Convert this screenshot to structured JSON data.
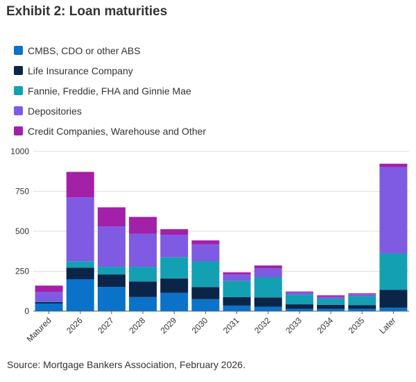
{
  "title": "Exhibit 2: Loan maturities",
  "source": "Source: Mortgage Bankers Association, February 2026.",
  "colors": {
    "cmbs": "#0a72c9",
    "life": "#0b2549",
    "gse": "#13a0b3",
    "depositories": "#7e5be2",
    "credit": "#a320a8",
    "axis": "#555555",
    "grid": "#dddddd"
  },
  "chart_data": {
    "type": "bar",
    "stacked": true,
    "categories": [
      "Matured",
      "2026",
      "2027",
      "2028",
      "2029",
      "2030",
      "2031",
      "2032",
      "2033",
      "2034",
      "2035",
      "Later"
    ],
    "series": [
      {
        "name": "CMBS, CDO or other ABS",
        "color": "#0a72c9",
        "values": [
          48,
          200,
          152,
          88,
          115,
          75,
          35,
          28,
          15,
          15,
          15,
          22
        ]
      },
      {
        "name": "Life Insurance Company",
        "color": "#0b2549",
        "values": [
          10,
          72,
          78,
          98,
          90,
          76,
          52,
          58,
          28,
          25,
          23,
          112
        ]
      },
      {
        "name": "Fannie, Freddie, FHA and Ginnie Mae",
        "color": "#13a0b3",
        "values": [
          2,
          40,
          48,
          92,
          133,
          162,
          103,
          127,
          60,
          38,
          55,
          227
        ]
      },
      {
        "name": "Depositories",
        "color": "#7e5be2",
        "values": [
          60,
          400,
          252,
          207,
          140,
          105,
          40,
          55,
          15,
          12,
          15,
          540
        ]
      },
      {
        "name": "Credit Companies, Warehouse and Other",
        "color": "#a320a8",
        "values": [
          40,
          160,
          120,
          105,
          35,
          25,
          13,
          18,
          5,
          9,
          4,
          22
        ]
      }
    ],
    "ylim": [
      0,
      1000
    ],
    "yticks": [
      "0",
      "250",
      "500",
      "750",
      "1000"
    ],
    "ytick_values": [
      0,
      250,
      500,
      750,
      1000
    ],
    "grid": true,
    "legend_position": "top-left"
  }
}
